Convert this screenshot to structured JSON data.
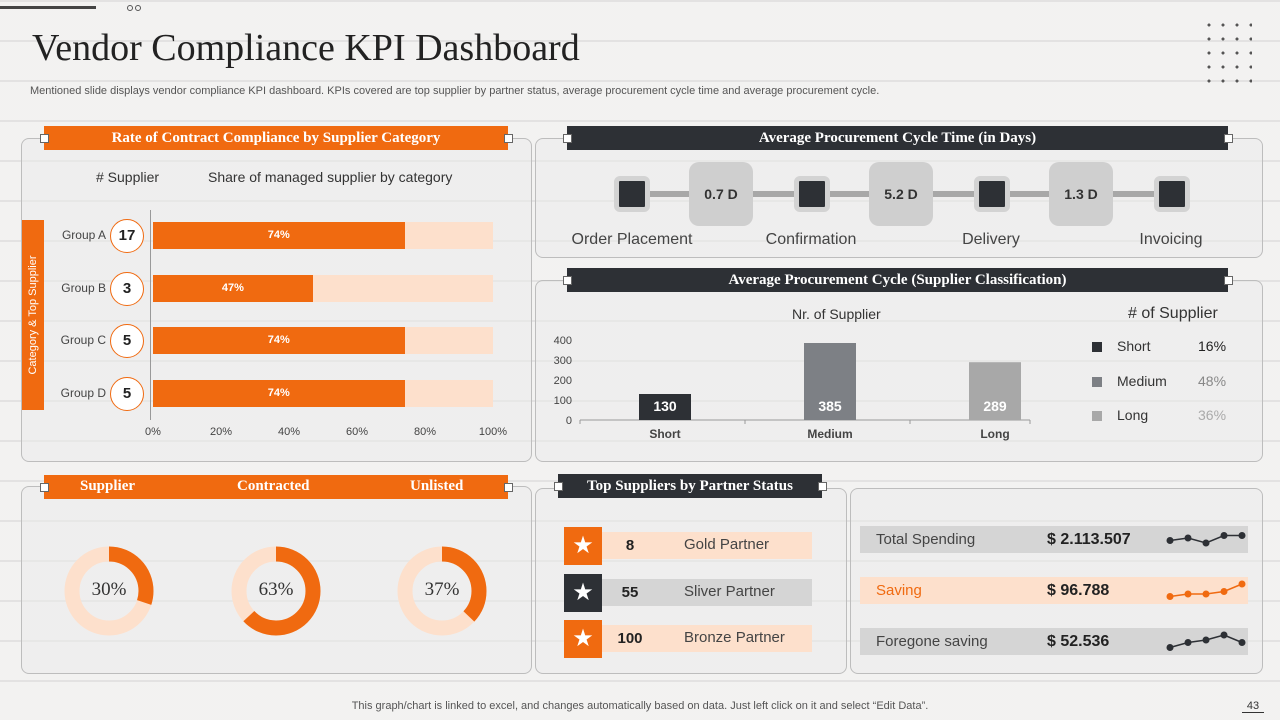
{
  "header": {
    "title": "Vendor Compliance KPI Dashboard",
    "subtitle": "Mentioned slide displays vendor compliance KPI dashboard. KPIs covered are  top supplier by partner status, average procurement cycle time and average procurement cycle."
  },
  "compliance": {
    "title": "Rate of Contract Compliance by Supplier Category",
    "col_supplier": "# Supplier",
    "col_share": "Share of managed supplier by category",
    "axis_label": "Category & Top Supplier",
    "ticks": [
      "0%",
      "20%",
      "40%",
      "60%",
      "80%",
      "100%"
    ],
    "rows": [
      {
        "group": "Group A",
        "count": "17",
        "label": "74%",
        "value": 74
      },
      {
        "group": "Group B",
        "count": "3",
        "label": "47%",
        "value": 47
      },
      {
        "group": "Group C",
        "count": "5",
        "label": "74%",
        "value": 74
      },
      {
        "group": "Group D",
        "count": "5",
        "label": "74%",
        "value": 74
      }
    ]
  },
  "cycle_time": {
    "title": "Average Procurement Cycle Time (in Days)",
    "steps": [
      "Order Placement",
      "Confirmation",
      "Delivery",
      "Invoicing"
    ],
    "durations": [
      "0.7 D",
      "5.2 D",
      "1.3 D"
    ]
  },
  "chart_data": {
    "type": "bar",
    "title": "Average Procurement Cycle (Supplier Classification)",
    "subtitle": "Nr. of Supplier",
    "categories": [
      "Short",
      "Medium",
      "Long"
    ],
    "values": [
      130,
      385,
      289
    ],
    "value_labels": [
      "130",
      "385",
      "289"
    ],
    "ylim": [
      0,
      400
    ],
    "yticks": [
      "0",
      "100",
      "200",
      "300",
      "400"
    ],
    "colors": [
      "#2d3035",
      "#7d8085",
      "#a8a8a8"
    ],
    "legend_title": "# of Supplier",
    "legend": [
      {
        "name": "Short",
        "pct": "16%",
        "color": "#2d3035"
      },
      {
        "name": "Medium",
        "pct": "48%",
        "color": "#7d8085"
      },
      {
        "name": "Long",
        "pct": "36%",
        "color": "#a8a8a8"
      }
    ]
  },
  "donuts": {
    "headers": [
      "Supplier",
      "Contracted",
      "Unlisted"
    ],
    "values": [
      30,
      63,
      37
    ],
    "labels": [
      "30%",
      "63%",
      "37%"
    ]
  },
  "partners": {
    "title": "Top Suppliers by Partner Status",
    "items": [
      {
        "count": "8",
        "name": "Gold Partner",
        "accent": "#f06a10",
        "strip": "#fde0cc",
        "icon": "star-icon"
      },
      {
        "count": "55",
        "name": "Sliver Partner",
        "accent": "#2d3035",
        "strip": "#d5d5d5",
        "icon": "star-icon"
      },
      {
        "count": "100",
        "name": "Bronze Partner",
        "accent": "#f06a10",
        "strip": "#fde0cc",
        "icon": "star-icon"
      }
    ]
  },
  "spending": {
    "items": [
      {
        "label": "Total Spending",
        "value": "$ 2.113.507",
        "bg": "#d5d5d5",
        "color": "#444",
        "line": "#2d3035",
        "spark": [
          3,
          4,
          2,
          5,
          5
        ]
      },
      {
        "label": "Saving",
        "value": "$ 96.788",
        "bg": "#fde0cc",
        "color": "#f06a10",
        "line": "#f06a10",
        "spark": [
          1,
          2,
          2,
          3,
          6
        ]
      },
      {
        "label": "Foregone saving",
        "value": "$ 52.536",
        "bg": "#d5d5d5",
        "color": "#444",
        "line": "#2d3035",
        "spark": [
          1,
          3,
          4,
          6,
          3
        ]
      }
    ]
  },
  "footer": {
    "note": "This graph/chart is linked to excel,  and changes automatically based on data. Just left click on it and select “Edit Data”.",
    "page": "43"
  }
}
